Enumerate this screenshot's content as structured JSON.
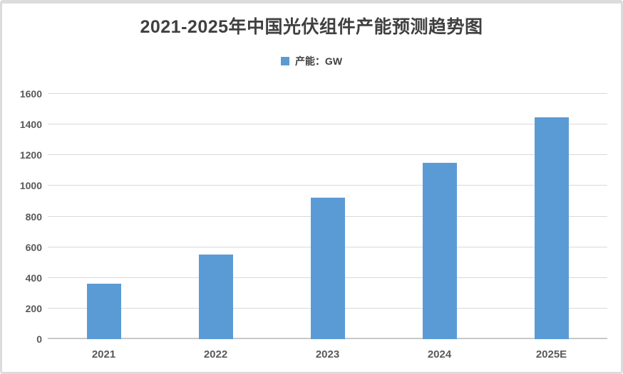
{
  "chart_data": {
    "type": "bar",
    "title": "2021-2025年中国光伏组件产能预测趋势图",
    "legend": [
      {
        "label": "产能：GW",
        "color": "#5B9BD5"
      }
    ],
    "legend_position": "top-center",
    "categories": [
      "2021",
      "2022",
      "2023",
      "2024",
      "2025E"
    ],
    "series": [
      {
        "name": "产能：GW",
        "values": [
          361,
          550,
          925,
          1150,
          1445
        ]
      }
    ],
    "xlabel": "",
    "ylabel": "",
    "ylim": [
      0,
      1600
    ],
    "ytick_step": 200,
    "yticks": [
      0,
      200,
      400,
      600,
      800,
      1000,
      1200,
      1400,
      1600
    ],
    "grid": true,
    "colors": {
      "bar": "#5B9BD5",
      "gridline": "#d9d9d9",
      "axis_line": "#c9c9c9",
      "tick_label": "#595959",
      "title": "#404040",
      "card_border": "#dcdcdc",
      "background": "#ffffff"
    }
  }
}
